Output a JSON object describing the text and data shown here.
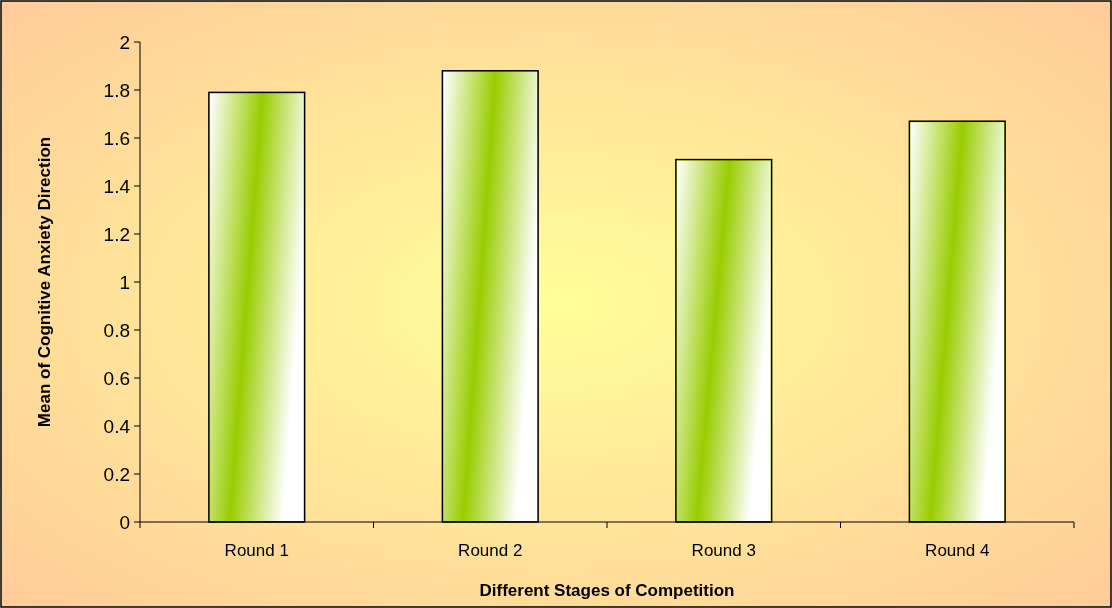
{
  "chart_data": {
    "type": "bar",
    "xlabel": "Different Stages of Competition",
    "ylabel": "Mean of Cognitive Anxiety Direction",
    "categories": [
      "Round 1",
      "Round 2",
      "Round 3",
      "Round 4"
    ],
    "values": [
      1.79,
      1.88,
      1.51,
      1.67
    ],
    "color": "#99cc00",
    "ylim": [
      0,
      2
    ],
    "yticks": [
      0,
      0.2,
      0.4,
      0.6,
      0.8,
      1,
      1.2,
      1.4,
      1.6,
      1.8,
      2
    ],
    "grid": false
  }
}
